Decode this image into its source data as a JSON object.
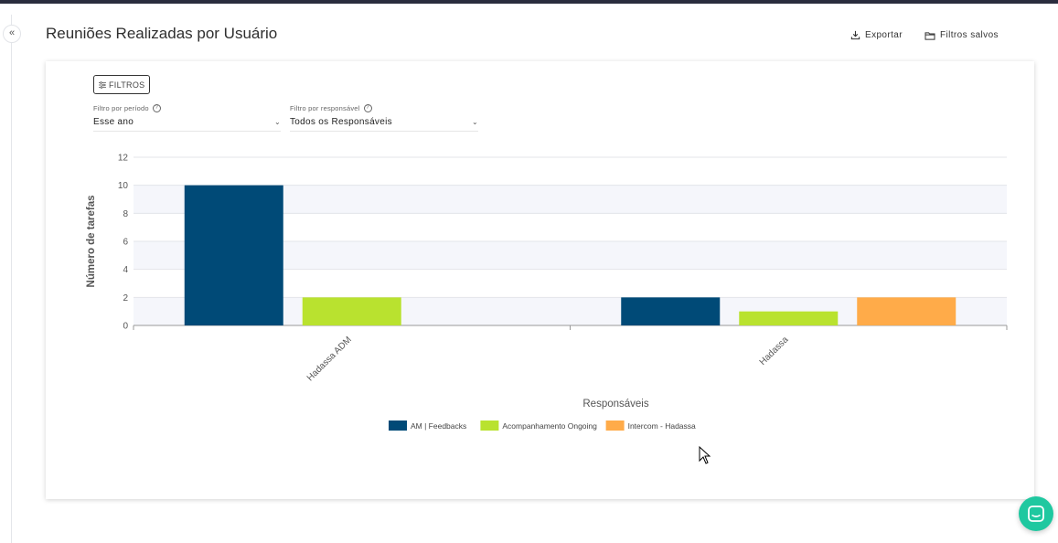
{
  "page": {
    "title": "Reuniões Realizadas por Usuário",
    "export_label": "Exportar",
    "saved_filters_label": "Filtros salvos",
    "collapse_icon_text": "«"
  },
  "filters": {
    "button_label": "FILTROS",
    "period": {
      "label": "Filtro por período",
      "value": "Esse ano"
    },
    "responsible": {
      "label": "Filtro por responsável",
      "value": "Todos os Responsáveis"
    }
  },
  "chart_data": {
    "type": "bar",
    "categories": [
      "Hadassa ADM",
      "Hadassa"
    ],
    "series": [
      {
        "name": "AM | Feedbacks",
        "values": [
          10,
          2
        ],
        "color": "#004a77"
      },
      {
        "name": "Acompanhamento Ongoing",
        "values": [
          2,
          1
        ],
        "color": "#b9e22f"
      },
      {
        "name": "Intercom - Hadassa",
        "values": [
          0,
          2
        ],
        "color": "#ffab49"
      }
    ],
    "yticks": [
      0,
      2,
      4,
      6,
      8,
      10,
      12
    ],
    "ylim": [
      0,
      12
    ],
    "xlabel": "Responsáveis",
    "ylabel": "Número de tarefas",
    "legend_position": "bottom"
  }
}
